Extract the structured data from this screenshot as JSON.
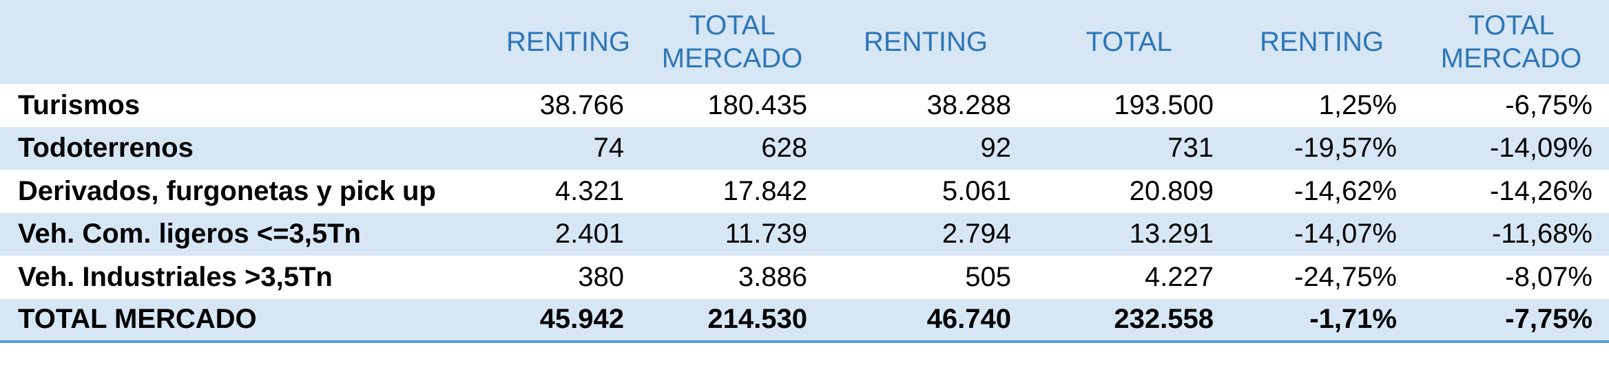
{
  "headers": [
    "",
    "RENTING",
    "TOTAL MERCADO",
    "RENTING",
    "TOTAL",
    "RENTING",
    "TOTAL MERCADO"
  ],
  "rows": [
    {
      "label": "Turismos",
      "values": [
        "38.766",
        "180.435",
        "38.288",
        "193.500",
        "1,25%",
        "-6,75%"
      ]
    },
    {
      "label": "Todoterrenos",
      "values": [
        "74",
        "628",
        "92",
        "731",
        "-19,57%",
        "-14,09%"
      ]
    },
    {
      "label": "Derivados, furgonetas y pick up",
      "values": [
        "4.321",
        "17.842",
        "5.061",
        "20.809",
        "-14,62%",
        "-14,26%"
      ]
    },
    {
      "label": "Veh. Com. ligeros <=3,5Tn",
      "values": [
        "2.401",
        "11.739",
        "2.794",
        "13.291",
        "-14,07%",
        "-11,68%"
      ]
    },
    {
      "label": "Veh. Industriales >3,5Tn",
      "values": [
        "380",
        "3.886",
        "505",
        "4.227",
        "-24,75%",
        "-8,07%"
      ]
    },
    {
      "label": "TOTAL MERCADO",
      "values": [
        "45.942",
        "214.530",
        "46.740",
        "232.558",
        "-1,71%",
        "-7,75%"
      ]
    }
  ],
  "colors": {
    "header_text": "#2e75b6",
    "band": "#d6e6f5",
    "rule": "#5b9bd5"
  }
}
